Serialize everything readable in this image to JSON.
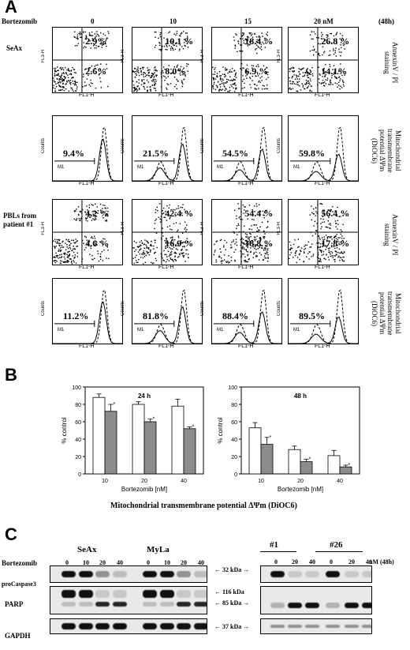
{
  "panel_a": {
    "letter": "A",
    "drug_label": "Bortezomib",
    "conditions": [
      "0",
      "10",
      "15",
      "20 nM"
    ],
    "time": "(48h)",
    "rows": [
      {
        "label": "SeAx",
        "side_label": "AnnexinV / PI staining",
        "values_upper": [
          "2.9%",
          "10.1 %",
          "18.4 %",
          "26.8 %"
        ],
        "values_lower": [
          "2.6%",
          "8.0%",
          "6.9 %",
          "14.1%"
        ]
      },
      {
        "label": "",
        "side_label": "Mitochondrial transmembrane potential ΔΨm (DiOC6)",
        "values": [
          "9.4%",
          "21.5%",
          "54.5%",
          "59.8%"
        ]
      },
      {
        "label": "PBLs from patient #1",
        "side_label": "AnnexinV / PI staining",
        "values_upper": [
          "4.2 %",
          "42.4 %",
          "54.4 %",
          "56.4 %"
        ],
        "values_lower": [
          "4.6 %",
          "16.9 %",
          "18.8 %",
          "17.8 %"
        ]
      },
      {
        "label": "",
        "side_label": "Mitochondrial transmembrane potential ΔΨm (DiOC6)",
        "values": [
          "11.2%",
          "81.8%",
          "88.4%",
          "89.5%"
        ]
      }
    ],
    "axis_fl1": "FL1-H",
    "axis_fl3": "FL3-H",
    "axis_counts": "Counts",
    "marker": "M1"
  },
  "panel_b": {
    "letter": "B",
    "caption": "Mitochondrial transmembrane potential ΔΨm (DiOC6)",
    "chart_data": [
      {
        "type": "bar",
        "title": "24 h",
        "xlabel": "Bortezomib [nM]",
        "ylabel": "% control",
        "categories": [
          "10",
          "20",
          "40"
        ],
        "ylim": [
          0,
          100
        ],
        "series": [
          {
            "name": "",
            "values": [
              88,
              80,
              78
            ],
            "errors": [
              4,
              3,
              8
            ]
          },
          {
            "name": "",
            "values": [
              72,
              60,
              52
            ],
            "errors": [
              8,
              3,
              2
            ]
          }
        ]
      },
      {
        "type": "bar",
        "title": "48 h",
        "xlabel": "Bortezomib [nM]",
        "ylabel": "% control",
        "categories": [
          "10",
          "20",
          "40"
        ],
        "ylim": [
          0,
          100
        ],
        "series": [
          {
            "name": "",
            "values": [
              53,
              28,
              21
            ],
            "errors": [
              6,
              4,
              6
            ]
          },
          {
            "name": "",
            "values": [
              34,
              14,
              8
            ],
            "errors": [
              8,
              3,
              2
            ]
          }
        ]
      }
    ],
    "tick_labels": [
      "0",
      "20",
      "40",
      "60",
      "80",
      "100"
    ],
    "star": "*"
  },
  "panel_c": {
    "letter": "C",
    "drug_label": "Bortezomib",
    "groups_left": [
      "SeAx",
      "MyLa"
    ],
    "groups_right": [
      "#1",
      "#26"
    ],
    "lanes_left": [
      "0",
      "10",
      "20",
      "40",
      "0",
      "10",
      "20",
      "40"
    ],
    "lanes_right": [
      "0",
      "20",
      "40",
      "0",
      "20",
      "40"
    ],
    "units": "nM (48h)",
    "blot_labels": [
      "proCaspase3",
      "PARP",
      "GAPDH"
    ],
    "markers": [
      "32 kDa",
      "116 kDa",
      "85 kDa",
      "37 kDa"
    ]
  }
}
